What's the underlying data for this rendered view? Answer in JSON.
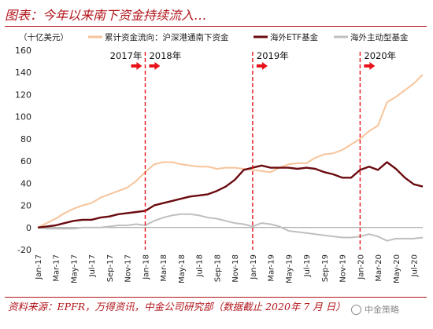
{
  "header": {
    "title": "图表：今年以来南下资金持续流入…"
  },
  "footer": {
    "source": "资料来源：EPFR，万得资讯，中金公司研究部（数据截止 2020年 7 月 日）",
    "watermark": "中金策略"
  },
  "chart_data": {
    "type": "line",
    "unit_label": "（十亿美元）",
    "ylim": [
      -20,
      160
    ],
    "yticks": [
      -20,
      0,
      20,
      40,
      60,
      80,
      100,
      120,
      140,
      160
    ],
    "x_tick_labels": [
      "Jan-17",
      "Mar-17",
      "May-17",
      "Jul-17",
      "Sep-17",
      "Nov-17",
      "Jan-18",
      "Mar-18",
      "May-18",
      "Jul-18",
      "Sep-18",
      "Nov-18",
      "Jan-19",
      "Mar-19",
      "May-19",
      "Jul-19",
      "Sep-19",
      "Nov-19",
      "Jan-20",
      "Mar-20",
      "May-20",
      "Jul-20"
    ],
    "x_start": "Jan-17",
    "x_end": "Aug-20",
    "grid": false,
    "legend_position": "top",
    "series": [
      {
        "name": "累计资金流向：沪深港通南下资金",
        "color": "#f7c49a",
        "values": [
          [
            "Jan-17",
            0
          ],
          [
            "Feb-17",
            4
          ],
          [
            "Mar-17",
            8
          ],
          [
            "Apr-17",
            13
          ],
          [
            "May-17",
            17
          ],
          [
            "Jun-17",
            20
          ],
          [
            "Jul-17",
            22
          ],
          [
            "Aug-17",
            27
          ],
          [
            "Sep-17",
            30
          ],
          [
            "Oct-17",
            33
          ],
          [
            "Nov-17",
            36
          ],
          [
            "Dec-17",
            42
          ],
          [
            "Jan-18",
            50
          ],
          [
            "Feb-18",
            57
          ],
          [
            "Mar-18",
            59
          ],
          [
            "Apr-18",
            59
          ],
          [
            "May-18",
            57
          ],
          [
            "Jun-18",
            56
          ],
          [
            "Jul-18",
            55
          ],
          [
            "Aug-18",
            55
          ],
          [
            "Sep-18",
            53
          ],
          [
            "Oct-18",
            54
          ],
          [
            "Nov-18",
            54
          ],
          [
            "Dec-18",
            53
          ],
          [
            "Jan-19",
            52
          ],
          [
            "Feb-19",
            51
          ],
          [
            "Mar-19",
            50
          ],
          [
            "Apr-19",
            54
          ],
          [
            "May-19",
            57
          ],
          [
            "Jun-19",
            58
          ],
          [
            "Jul-19",
            58
          ],
          [
            "Aug-19",
            63
          ],
          [
            "Sep-19",
            66
          ],
          [
            "Oct-19",
            67
          ],
          [
            "Nov-19",
            70
          ],
          [
            "Dec-19",
            75
          ],
          [
            "Jan-20",
            80
          ],
          [
            "Feb-20",
            87
          ],
          [
            "Mar-20",
            92
          ],
          [
            "Apr-20",
            113
          ],
          [
            "May-20",
            118
          ],
          [
            "Jun-20",
            124
          ],
          [
            "Jul-20",
            130
          ],
          [
            "Aug-20",
            138
          ]
        ]
      },
      {
        "name": "海外ETF基金",
        "color": "#6b0b10",
        "values": [
          [
            "Jan-17",
            0
          ],
          [
            "Feb-17",
            1
          ],
          [
            "Mar-17",
            2
          ],
          [
            "Apr-17",
            4
          ],
          [
            "May-17",
            6
          ],
          [
            "Jun-17",
            7
          ],
          [
            "Jul-17",
            7
          ],
          [
            "Aug-17",
            9
          ],
          [
            "Sep-17",
            10
          ],
          [
            "Oct-17",
            12
          ],
          [
            "Nov-17",
            13
          ],
          [
            "Dec-17",
            14
          ],
          [
            "Jan-18",
            15
          ],
          [
            "Feb-18",
            20
          ],
          [
            "Mar-18",
            22
          ],
          [
            "Apr-18",
            24
          ],
          [
            "May-18",
            26
          ],
          [
            "Jun-18",
            28
          ],
          [
            "Jul-18",
            29
          ],
          [
            "Aug-18",
            30
          ],
          [
            "Sep-18",
            33
          ],
          [
            "Oct-18",
            37
          ],
          [
            "Nov-18",
            43
          ],
          [
            "Dec-18",
            52
          ],
          [
            "Jan-19",
            54
          ],
          [
            "Feb-19",
            56
          ],
          [
            "Mar-19",
            54
          ],
          [
            "Apr-19",
            54
          ],
          [
            "May-19",
            54
          ],
          [
            "Jun-19",
            53
          ],
          [
            "Jul-19",
            54
          ],
          [
            "Aug-19",
            53
          ],
          [
            "Sep-19",
            50
          ],
          [
            "Oct-19",
            48
          ],
          [
            "Nov-19",
            45
          ],
          [
            "Dec-19",
            45
          ],
          [
            "Jan-20",
            52
          ],
          [
            "Feb-20",
            55
          ],
          [
            "Mar-20",
            52
          ],
          [
            "Apr-20",
            59
          ],
          [
            "May-20",
            53
          ],
          [
            "Jun-20",
            45
          ],
          [
            "Jul-20",
            39
          ],
          [
            "Aug-20",
            37
          ]
        ]
      },
      {
        "name": "海外主动型基金",
        "color": "#bfbfbf",
        "values": [
          [
            "Jan-17",
            0
          ],
          [
            "Feb-17",
            -1
          ],
          [
            "Mar-17",
            -1
          ],
          [
            "Apr-17",
            -1
          ],
          [
            "May-17",
            -1
          ],
          [
            "Jun-17",
            0
          ],
          [
            "Jul-17",
            0
          ],
          [
            "Aug-17",
            0
          ],
          [
            "Sep-17",
            1
          ],
          [
            "Oct-17",
            2
          ],
          [
            "Nov-17",
            2
          ],
          [
            "Dec-17",
            3
          ],
          [
            "Jan-18",
            2
          ],
          [
            "Feb-18",
            6
          ],
          [
            "Mar-18",
            9
          ],
          [
            "Apr-18",
            11
          ],
          [
            "May-18",
            12
          ],
          [
            "Jun-18",
            12
          ],
          [
            "Jul-18",
            11
          ],
          [
            "Aug-18",
            9
          ],
          [
            "Sep-18",
            8
          ],
          [
            "Oct-18",
            6
          ],
          [
            "Nov-18",
            4
          ],
          [
            "Dec-18",
            3
          ],
          [
            "Jan-19",
            1
          ],
          [
            "Feb-19",
            4
          ],
          [
            "Mar-19",
            3
          ],
          [
            "Apr-19",
            1
          ],
          [
            "May-19",
            -3
          ],
          [
            "Jun-19",
            -4
          ],
          [
            "Jul-19",
            -5
          ],
          [
            "Aug-19",
            -6
          ],
          [
            "Sep-19",
            -7
          ],
          [
            "Oct-19",
            -8
          ],
          [
            "Nov-19",
            -9
          ],
          [
            "Dec-19",
            -9
          ],
          [
            "Jan-20",
            -8
          ],
          [
            "Feb-20",
            -6
          ],
          [
            "Mar-20",
            -8
          ],
          [
            "Apr-20",
            -12
          ],
          [
            "May-20",
            -10
          ],
          [
            "Jun-20",
            -10
          ],
          [
            "Jul-20",
            -10
          ],
          [
            "Aug-20",
            -9
          ]
        ]
      }
    ],
    "annotations": {
      "dashed_color": "#e8131a",
      "vlines": [
        {
          "at": "Jan-18",
          "left_label": "2017年",
          "right_label": "2018年"
        },
        {
          "at": "Jan-19",
          "right_label": "2019年"
        },
        {
          "at": "Jan-20",
          "right_label": "2020年"
        }
      ]
    }
  }
}
